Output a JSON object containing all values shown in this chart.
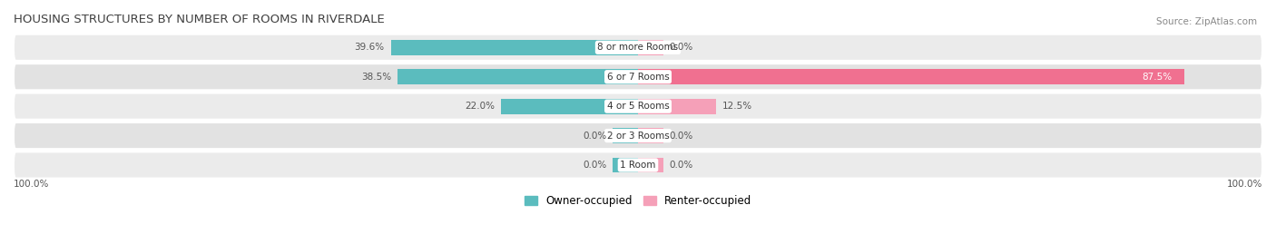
{
  "title": "HOUSING STRUCTURES BY NUMBER OF ROOMS IN RIVERDALE",
  "source": "Source: ZipAtlas.com",
  "categories": [
    "1 Room",
    "2 or 3 Rooms",
    "4 or 5 Rooms",
    "6 or 7 Rooms",
    "8 or more Rooms"
  ],
  "owner_values": [
    0.0,
    0.0,
    22.0,
    38.5,
    39.6
  ],
  "renter_values": [
    0.0,
    0.0,
    12.5,
    87.5,
    0.0
  ],
  "owner_color": "#5bbcbe",
  "renter_color": "#f07090",
  "renter_color_light": "#f5a0b8",
  "row_bg_color_odd": "#ebebeb",
  "row_bg_color_even": "#e0e0e0",
  "max_val": 100.0,
  "label_color_dark": "#555555",
  "label_color_white": "#ffffff",
  "title_color": "#404040",
  "legend_owner": "Owner-occupied",
  "legend_renter": "Renter-occupied",
  "x_tick_left": "100.0%",
  "x_tick_right": "100.0%",
  "stub_size": 4.0,
  "bar_height": 0.52
}
